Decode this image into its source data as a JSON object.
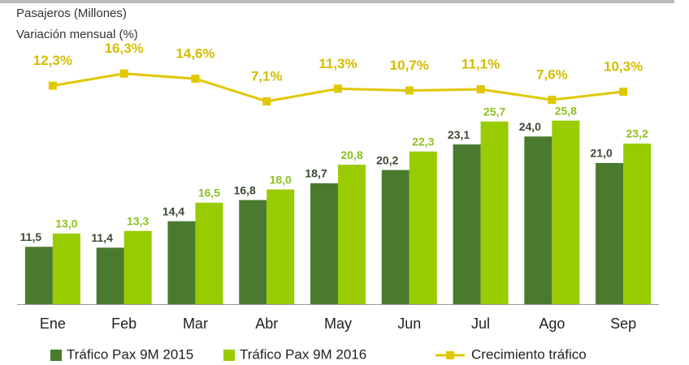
{
  "chart_data": {
    "type": "bar",
    "labels": [
      "Pasajeros (Millones)",
      "Variación mensual (%)"
    ],
    "categories": [
      "Ene",
      "Feb",
      "Mar",
      "Abr",
      "May",
      "Jun",
      "Jul",
      "Ago",
      "Sep"
    ],
    "series": [
      {
        "name": "Tráfico Pax 9M 2015",
        "color": "#4a7a2e",
        "values": [
          11.5,
          11.4,
          14.4,
          16.8,
          18.7,
          20.2,
          23.1,
          24.0,
          21.0
        ],
        "value_labels": [
          "11,5",
          "11,4",
          "14,4",
          "16,8",
          "18,7",
          "20,2",
          "23,1",
          "24,0",
          "21,0"
        ]
      },
      {
        "name": "Tráfico Pax 9M 2016",
        "color": "#99cc00",
        "values": [
          13.0,
          13.3,
          16.5,
          18.0,
          20.8,
          22.3,
          25.7,
          25.8,
          23.2
        ],
        "value_labels": [
          "13,0",
          "13,3",
          "16,5",
          "18,0",
          "20,8",
          "22,3",
          "25,7",
          "25,8",
          "23,2"
        ]
      },
      {
        "name": "Crecimiento tráfico",
        "color": "#e0c800",
        "axis": "y2",
        "values": [
          12.3,
          16.3,
          14.6,
          7.1,
          11.3,
          10.7,
          11.1,
          7.6,
          10.3
        ],
        "value_labels": [
          "12,3%",
          "16,3%",
          "14,6%",
          "7,1%",
          "11,3%",
          "10,7%",
          "11,1%",
          "7,6%",
          "10,3%"
        ]
      }
    ],
    "ylim": [
      5,
      30
    ],
    "y2lim": [
      -60,
      13
    ],
    "legend": "bottom"
  }
}
